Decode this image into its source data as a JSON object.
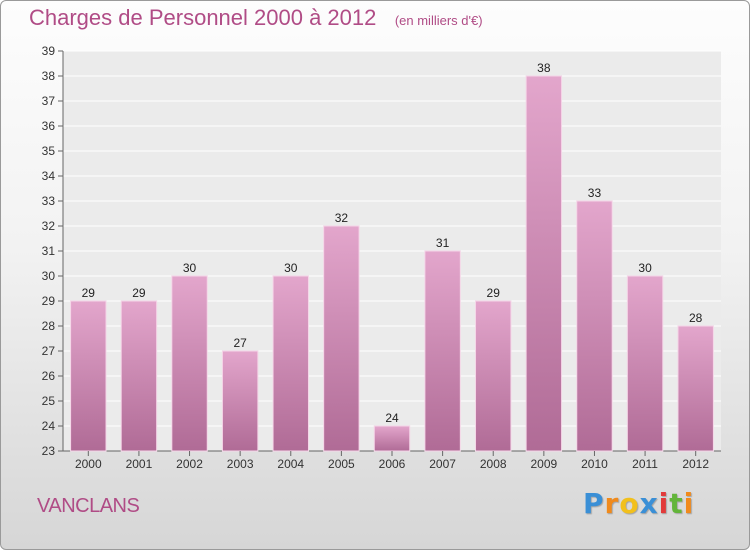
{
  "chart_data": {
    "type": "bar",
    "title": "Charges de Personnel 2000 à 2012",
    "subtitle": "(en milliers d'€)",
    "categories": [
      "2000",
      "2001",
      "2002",
      "2003",
      "2004",
      "2005",
      "2006",
      "2007",
      "2008",
      "2009",
      "2010",
      "2011",
      "2012"
    ],
    "values": [
      29,
      29,
      30,
      27,
      30,
      32,
      24,
      31,
      29,
      38,
      33,
      30,
      28
    ],
    "ylim": [
      23,
      39
    ],
    "yticks": [
      23,
      24,
      25,
      26,
      27,
      28,
      29,
      30,
      31,
      32,
      33,
      34,
      35,
      36,
      37,
      38,
      39
    ],
    "grid": true,
    "bar_color_top": "#e3a6cc",
    "bar_color_bottom": "#b06b96"
  },
  "commune": "VANCLANS",
  "logo": {
    "letters": [
      "P",
      "r",
      "o",
      "x",
      "i",
      "t",
      "i"
    ],
    "colors": [
      "#3a8fd6",
      "#f08a1c",
      "#f2c01c",
      "#3a8fd6",
      "#e23a3a",
      "#63b53a",
      "#f08a1c"
    ]
  }
}
